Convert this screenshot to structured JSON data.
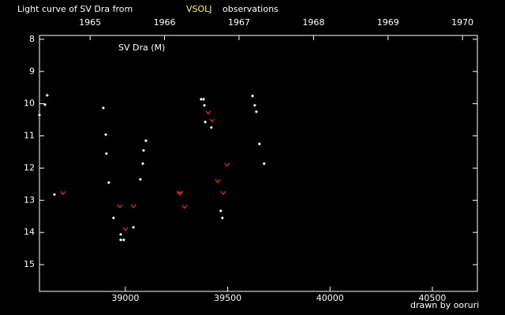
{
  "chart_data": {
    "type": "scatter",
    "title_parts": [
      "Light curve of SV Dra from",
      "VSOLJ",
      "observations"
    ],
    "title_colors": [
      "#ffffff",
      "#ffff33",
      "#ffffff"
    ],
    "label": "SV Dra (M)",
    "credit": "drawn by ooruri",
    "credit_color": "#33ccff",
    "background": "#000000",
    "xlim": [
      38580,
      40720
    ],
    "xticks": [
      39000,
      39500,
      40000,
      40500
    ],
    "x2lim": [
      1964.32,
      1970.2
    ],
    "x2ticks": [
      1965,
      1966,
      1967,
      1968,
      1969,
      1970
    ],
    "ylim": [
      15.83,
      7.88
    ],
    "yticks": [
      8,
      9,
      10,
      11,
      12,
      13,
      14,
      15
    ],
    "series": [
      {
        "marker": "diamond",
        "color": "#ffffff",
        "x": [
          38580,
          38607,
          38618,
          38653,
          38892,
          38904,
          38907,
          38919,
          38942,
          38977,
          38977,
          38992,
          39039,
          39073,
          39085,
          39089,
          39100,
          39370,
          39382,
          39386,
          39390,
          39420,
          39466,
          39474,
          39621,
          39632,
          39640,
          39655,
          39678
        ],
        "values": [
          10.35,
          10.03,
          9.74,
          12.82,
          10.13,
          10.96,
          11.55,
          12.45,
          13.55,
          14.06,
          14.23,
          14.23,
          13.84,
          12.35,
          11.86,
          11.45,
          11.15,
          9.86,
          9.86,
          10.05,
          10.57,
          10.74,
          13.33,
          13.55,
          9.76,
          10.05,
          10.25,
          11.25,
          11.86
        ]
      },
      {
        "marker": "v",
        "color": "#ff2020",
        "x": [
          38695,
          38973,
          39000,
          39039,
          39262,
          39270,
          39289,
          39405,
          39424,
          39451,
          39478,
          39497
        ],
        "values": [
          12.77,
          13.18,
          13.89,
          13.18,
          12.77,
          12.77,
          13.2,
          10.27,
          10.52,
          12.4,
          12.77,
          11.89
        ]
      }
    ]
  }
}
